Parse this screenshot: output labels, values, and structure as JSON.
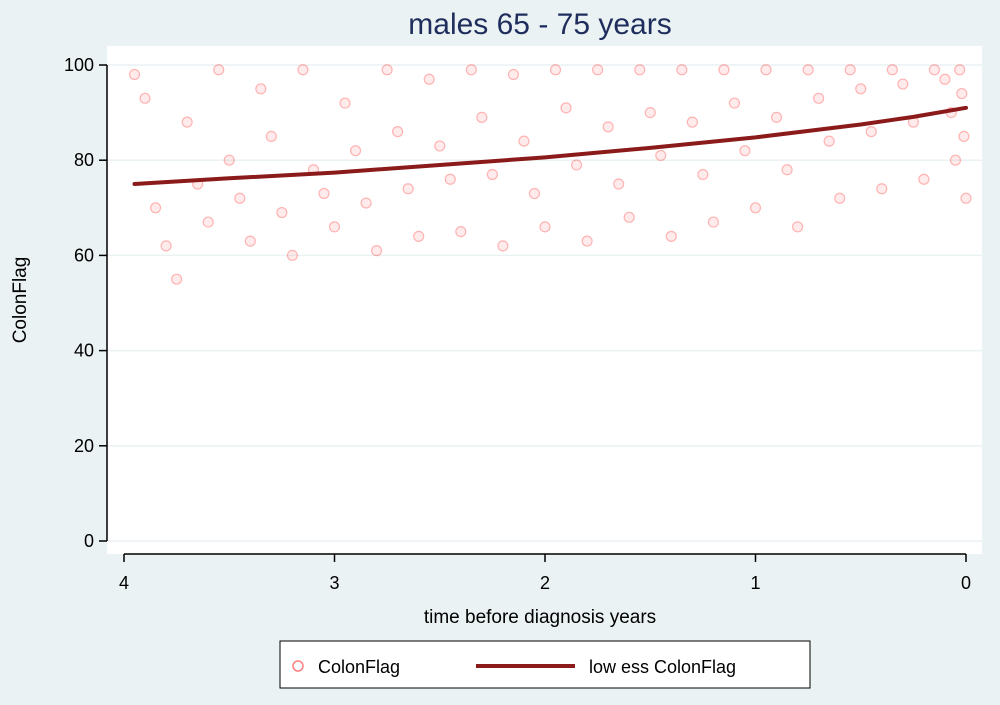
{
  "chart_data": {
    "type": "scatter",
    "title": "males  65 - 75 years",
    "xlabel": "time before diagnosis years",
    "ylabel": "ColonFlag",
    "xlim": [
      4,
      0
    ],
    "ylim": [
      0,
      100
    ],
    "x_reversed": true,
    "xticks": [
      4,
      3,
      2,
      1,
      0
    ],
    "yticks": [
      0,
      20,
      40,
      60,
      80,
      100
    ],
    "grid": true,
    "legend_position": "bottom",
    "background_color": "#eaf2f3",
    "plot_background_color": "#ffffff",
    "series": [
      {
        "name": "ColonFlag",
        "kind": "scatter",
        "color": "#ff2020",
        "marker": "hollow-circle",
        "density_note": "dense cloud roughly between 55 and 100, densest near x=0 and y=100",
        "points": [
          [
            3.95,
            98
          ],
          [
            3.9,
            93
          ],
          [
            3.85,
            70
          ],
          [
            3.8,
            62
          ],
          [
            3.75,
            55
          ],
          [
            3.7,
            88
          ],
          [
            3.65,
            75
          ],
          [
            3.6,
            67
          ],
          [
            3.55,
            99
          ],
          [
            3.5,
            80
          ],
          [
            3.45,
            72
          ],
          [
            3.4,
            63
          ],
          [
            3.35,
            95
          ],
          [
            3.3,
            85
          ],
          [
            3.25,
            69
          ],
          [
            3.2,
            60
          ],
          [
            3.15,
            99
          ],
          [
            3.1,
            78
          ],
          [
            3.05,
            73
          ],
          [
            3.0,
            66
          ],
          [
            2.95,
            92
          ],
          [
            2.9,
            82
          ],
          [
            2.85,
            71
          ],
          [
            2.8,
            61
          ],
          [
            2.75,
            99
          ],
          [
            2.7,
            86
          ],
          [
            2.65,
            74
          ],
          [
            2.6,
            64
          ],
          [
            2.55,
            97
          ],
          [
            2.5,
            83
          ],
          [
            2.45,
            76
          ],
          [
            2.4,
            65
          ],
          [
            2.35,
            99
          ],
          [
            2.3,
            89
          ],
          [
            2.25,
            77
          ],
          [
            2.2,
            62
          ],
          [
            2.15,
            98
          ],
          [
            2.1,
            84
          ],
          [
            2.05,
            73
          ],
          [
            2.0,
            66
          ],
          [
            1.95,
            99
          ],
          [
            1.9,
            91
          ],
          [
            1.85,
            79
          ],
          [
            1.8,
            63
          ],
          [
            1.75,
            99
          ],
          [
            1.7,
            87
          ],
          [
            1.65,
            75
          ],
          [
            1.6,
            68
          ],
          [
            1.55,
            99
          ],
          [
            1.5,
            90
          ],
          [
            1.45,
            81
          ],
          [
            1.4,
            64
          ],
          [
            1.35,
            99
          ],
          [
            1.3,
            88
          ],
          [
            1.25,
            77
          ],
          [
            1.2,
            67
          ],
          [
            1.15,
            99
          ],
          [
            1.1,
            92
          ],
          [
            1.05,
            82
          ],
          [
            1.0,
            70
          ],
          [
            0.95,
            99
          ],
          [
            0.9,
            89
          ],
          [
            0.85,
            78
          ],
          [
            0.8,
            66
          ],
          [
            0.75,
            99
          ],
          [
            0.7,
            93
          ],
          [
            0.65,
            84
          ],
          [
            0.6,
            72
          ],
          [
            0.55,
            99
          ],
          [
            0.5,
            95
          ],
          [
            0.45,
            86
          ],
          [
            0.4,
            74
          ],
          [
            0.35,
            99
          ],
          [
            0.3,
            96
          ],
          [
            0.25,
            88
          ],
          [
            0.2,
            76
          ],
          [
            0.15,
            99
          ],
          [
            0.1,
            97
          ],
          [
            0.07,
            90
          ],
          [
            0.05,
            80
          ],
          [
            0.03,
            99
          ],
          [
            0.02,
            94
          ],
          [
            0.01,
            85
          ],
          [
            0.0,
            72
          ]
        ]
      },
      {
        "name": "low ess ColonFlag",
        "kind": "line",
        "color": "#8b1a1a",
        "points": [
          [
            3.95,
            75
          ],
          [
            3.5,
            76.2
          ],
          [
            3.0,
            77.4
          ],
          [
            2.5,
            79
          ],
          [
            2.0,
            80.6
          ],
          [
            1.5,
            82.6
          ],
          [
            1.0,
            84.8
          ],
          [
            0.5,
            87.5
          ],
          [
            0.25,
            89.1
          ],
          [
            0.0,
            91
          ]
        ]
      }
    ]
  }
}
